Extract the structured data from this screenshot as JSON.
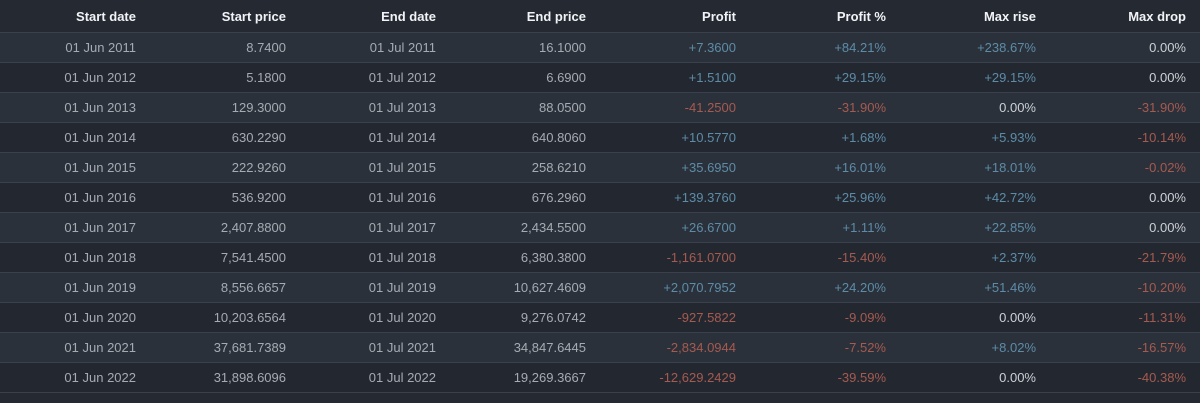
{
  "table": {
    "headers": [
      "Start date",
      "Start price",
      "End date",
      "End price",
      "Profit",
      "Profit %",
      "Max rise",
      "Max drop"
    ],
    "rows": [
      [
        "01 Jun 2011",
        "8.7400",
        "01 Jul 2011",
        "16.1000",
        "+7.3600",
        "+84.21%",
        "+238.67%",
        "0.00%"
      ],
      [
        "01 Jun 2012",
        "5.1800",
        "01 Jul 2012",
        "6.6900",
        "+1.5100",
        "+29.15%",
        "+29.15%",
        "0.00%"
      ],
      [
        "01 Jun 2013",
        "129.3000",
        "01 Jul 2013",
        "88.0500",
        "-41.2500",
        "-31.90%",
        "0.00%",
        "-31.90%"
      ],
      [
        "01 Jun 2014",
        "630.2290",
        "01 Jul 2014",
        "640.8060",
        "+10.5770",
        "+1.68%",
        "+5.93%",
        "-10.14%"
      ],
      [
        "01 Jun 2015",
        "222.9260",
        "01 Jul 2015",
        "258.6210",
        "+35.6950",
        "+16.01%",
        "+18.01%",
        "-0.02%"
      ],
      [
        "01 Jun 2016",
        "536.9200",
        "01 Jul 2016",
        "676.2960",
        "+139.3760",
        "+25.96%",
        "+42.72%",
        "0.00%"
      ],
      [
        "01 Jun 2017",
        "2,407.8800",
        "01 Jul 2017",
        "2,434.5500",
        "+26.6700",
        "+1.11%",
        "+22.85%",
        "0.00%"
      ],
      [
        "01 Jun 2018",
        "7,541.4500",
        "01 Jul 2018",
        "6,380.3800",
        "-1,161.0700",
        "-15.40%",
        "+2.37%",
        "-21.79%"
      ],
      [
        "01 Jun 2019",
        "8,556.6657",
        "01 Jul 2019",
        "10,627.4609",
        "+2,070.7952",
        "+24.20%",
        "+51.46%",
        "-10.20%"
      ],
      [
        "01 Jun 2020",
        "10,203.6564",
        "01 Jul 2020",
        "9,276.0742",
        "-927.5822",
        "-9.09%",
        "0.00%",
        "-11.31%"
      ],
      [
        "01 Jun 2021",
        "37,681.7389",
        "01 Jul 2021",
        "34,847.6445",
        "-2,834.0944",
        "-7.52%",
        "+8.02%",
        "-16.57%"
      ],
      [
        "01 Jun 2022",
        "31,898.6096",
        "01 Jul 2022",
        "19,269.3667",
        "-12,629.2429",
        "-39.59%",
        "0.00%",
        "-40.38%"
      ]
    ]
  },
  "colors": {
    "background": "#252a32",
    "row_light": "#2b313a",
    "row_dark": "#232830",
    "separator": "#3a414c",
    "header_text": "#f1f3f6",
    "date_price_text": "#a6abb3",
    "positive": "#5d8ca8",
    "negative": "#a65a50",
    "neutral_zero": "#ccd1d7"
  }
}
